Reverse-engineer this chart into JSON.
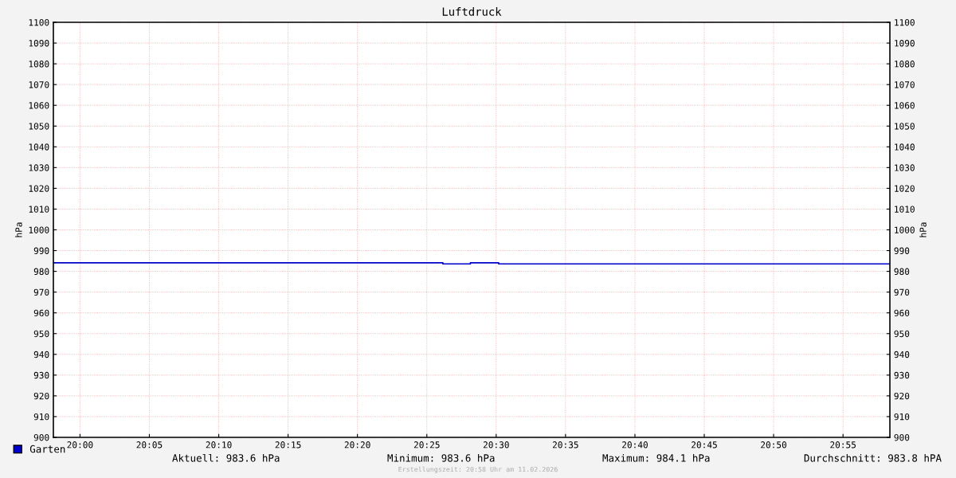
{
  "chart_data": {
    "type": "step",
    "title": "Luftdruck",
    "ylabel": "hPa",
    "y2label": "hPa",
    "x": [
      19.968,
      20.436,
      20.469,
      20.503,
      20.973
    ],
    "series": [
      {
        "name": "Garten",
        "color": "#0000cc",
        "values": [
          984.1,
          983.6,
          984.1,
          983.6,
          983.6
        ]
      }
    ],
    "xlim": [
      19.968,
      20.973
    ],
    "xticks": [
      {
        "value": 20.0,
        "label": "20:00"
      },
      {
        "value": 20.0833,
        "label": "20:05"
      },
      {
        "value": 20.1667,
        "label": "20:10"
      },
      {
        "value": 20.25,
        "label": "20:15"
      },
      {
        "value": 20.3333,
        "label": "20:20"
      },
      {
        "value": 20.4167,
        "label": "20:25"
      },
      {
        "value": 20.5,
        "label": "20:30"
      },
      {
        "value": 20.5833,
        "label": "20:35"
      },
      {
        "value": 20.6667,
        "label": "20:40"
      },
      {
        "value": 20.75,
        "label": "20:45"
      },
      {
        "value": 20.8333,
        "label": "20:50"
      },
      {
        "value": 20.9167,
        "label": "20:55"
      }
    ],
    "ylim": [
      900,
      1100
    ],
    "yticks": [
      900,
      910,
      920,
      930,
      940,
      950,
      960,
      970,
      980,
      990,
      1000,
      1010,
      1020,
      1030,
      1040,
      1050,
      1060,
      1070,
      1080,
      1090,
      1100
    ],
    "y2lim": [
      900,
      1100
    ],
    "y2ticks": [
      900,
      910,
      920,
      930,
      940,
      950,
      960,
      970,
      980,
      990,
      1000,
      1010,
      1020,
      1030,
      1040,
      1050,
      1060,
      1070,
      1080,
      1090,
      1100
    ],
    "grid": true,
    "legend": "bottom left",
    "annotations": [
      "Aktuell: 983.6 hPa",
      "Minimum: 983.6 hPa",
      "Maximum: 984.1 hPa",
      "Durchschnitt: 983.8 hPA",
      "Erstellungszeit: 20:58 Uhr am 11.02.2026"
    ]
  }
}
